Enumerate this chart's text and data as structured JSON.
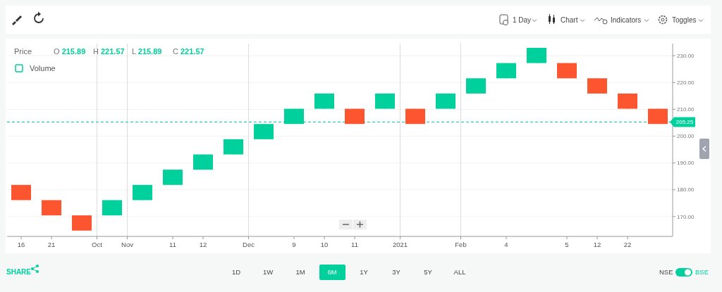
{
  "chart_data": {
    "type": "candlestick",
    "categories": [
      "16",
      null,
      "21",
      null,
      null,
      "Oct",
      null,
      "Nov",
      null,
      null,
      "11",
      null,
      "12",
      null,
      null,
      "Dec",
      null,
      null,
      "9",
      null,
      "10",
      null,
      "11",
      null,
      null,
      "2021",
      null,
      null,
      null,
      "Feb",
      null,
      null,
      "4",
      null,
      null,
      null,
      "5",
      null,
      "12",
      null,
      "22",
      null,
      null
    ],
    "ohlc": [
      [
        181.81,
        181.81,
        176.13,
        176.13
      ],
      null,
      [
        176.13,
        176.13,
        170.45,
        170.45
      ],
      null,
      [
        170.45,
        170.45,
        164.77,
        164.77
      ],
      null,
      [
        170.45,
        176.13,
        170.45,
        176.13
      ],
      null,
      [
        176.13,
        181.81,
        176.13,
        181.81
      ],
      null,
      [
        181.81,
        187.49,
        181.81,
        187.49
      ],
      null,
      [
        187.49,
        193.17,
        187.49,
        193.17
      ],
      null,
      [
        193.17,
        198.85,
        193.17,
        198.85
      ],
      null,
      [
        198.85,
        204.53,
        198.85,
        204.53
      ],
      null,
      [
        204.53,
        210.21,
        204.53,
        210.21
      ],
      null,
      [
        210.21,
        215.89,
        210.21,
        215.89
      ],
      null,
      [
        210.21,
        210.21,
        204.53,
        204.53
      ],
      null,
      [
        210.21,
        215.89,
        210.21,
        215.89
      ],
      null,
      [
        210.21,
        210.21,
        204.53,
        204.53
      ],
      null,
      [
        210.21,
        215.89,
        210.21,
        215.89
      ],
      null,
      [
        215.89,
        221.57,
        215.89,
        221.57
      ],
      null,
      [
        221.57,
        227.25,
        221.57,
        227.25
      ],
      null,
      [
        227.25,
        232.93,
        227.25,
        232.93
      ],
      null,
      [
        227.25,
        227.25,
        221.57,
        221.57
      ],
      null,
      [
        221.57,
        221.57,
        215.89,
        215.89
      ],
      null,
      [
        215.89,
        215.89,
        210.21,
        210.21
      ],
      null,
      [
        210.21,
        210.21,
        204.53,
        204.53
      ]
    ],
    "colors": [
      "#fd5530",
      null,
      "#fd5530",
      null,
      "#fd5530",
      null,
      "#00d09c",
      null,
      "#00d09c",
      null,
      "#00d09c",
      null,
      "#00d09c",
      null,
      "#00d09c",
      null,
      "#00d09c",
      null,
      "#00d09c",
      null,
      "#00d09c",
      null,
      "#fd5530",
      null,
      "#00d09c",
      null,
      "#fd5530",
      null,
      "#00d09c",
      null,
      "#00d09c",
      null,
      "#00d09c",
      null,
      "#00d09c",
      null,
      "#fd5530",
      null,
      "#fd5530",
      null,
      "#fd5530",
      null,
      "#fd5530"
    ],
    "ylim": [
      162.6,
      234.5
    ],
    "yticks": [
      {
        "value": 170,
        "label": "170.00"
      },
      {
        "value": 180,
        "label": "180.00"
      },
      {
        "value": 190,
        "label": "190.00"
      },
      {
        "value": 200,
        "label": "200.00"
      },
      {
        "value": 210,
        "label": "210.00"
      },
      {
        "value": 220,
        "label": "220.00"
      },
      {
        "value": 230,
        "label": "230.00"
      }
    ],
    "grid": "y",
    "ref_lines": [
      {
        "axis": "y",
        "value": 205.25,
        "label": "205.25",
        "color": "#00d09c",
        "line_style": "dashed"
      },
      {
        "axis": "x",
        "value": "Oct",
        "color": "#dddddd"
      },
      {
        "axis": "x",
        "value": "Nov",
        "color": "#dddddd"
      },
      {
        "axis": "x",
        "value": "Dec",
        "color": "#dddddd"
      },
      {
        "axis": "x",
        "value": "2021",
        "color": "#dddddd"
      },
      {
        "axis": "x",
        "value": "Feb",
        "color": "#dddddd"
      }
    ],
    "annotations": [
      "Price",
      "O 215.89",
      "H 221.57",
      "L 215.89",
      "C 221.57",
      "Volume",
      "1 Day",
      "Chart",
      "Indicators",
      "Toggles",
      "SHARE",
      "1D",
      "1W",
      "1M",
      "6M",
      "1Y",
      "3Y",
      "5Y",
      "ALL",
      "NSE",
      "BSE"
    ]
  }
}
